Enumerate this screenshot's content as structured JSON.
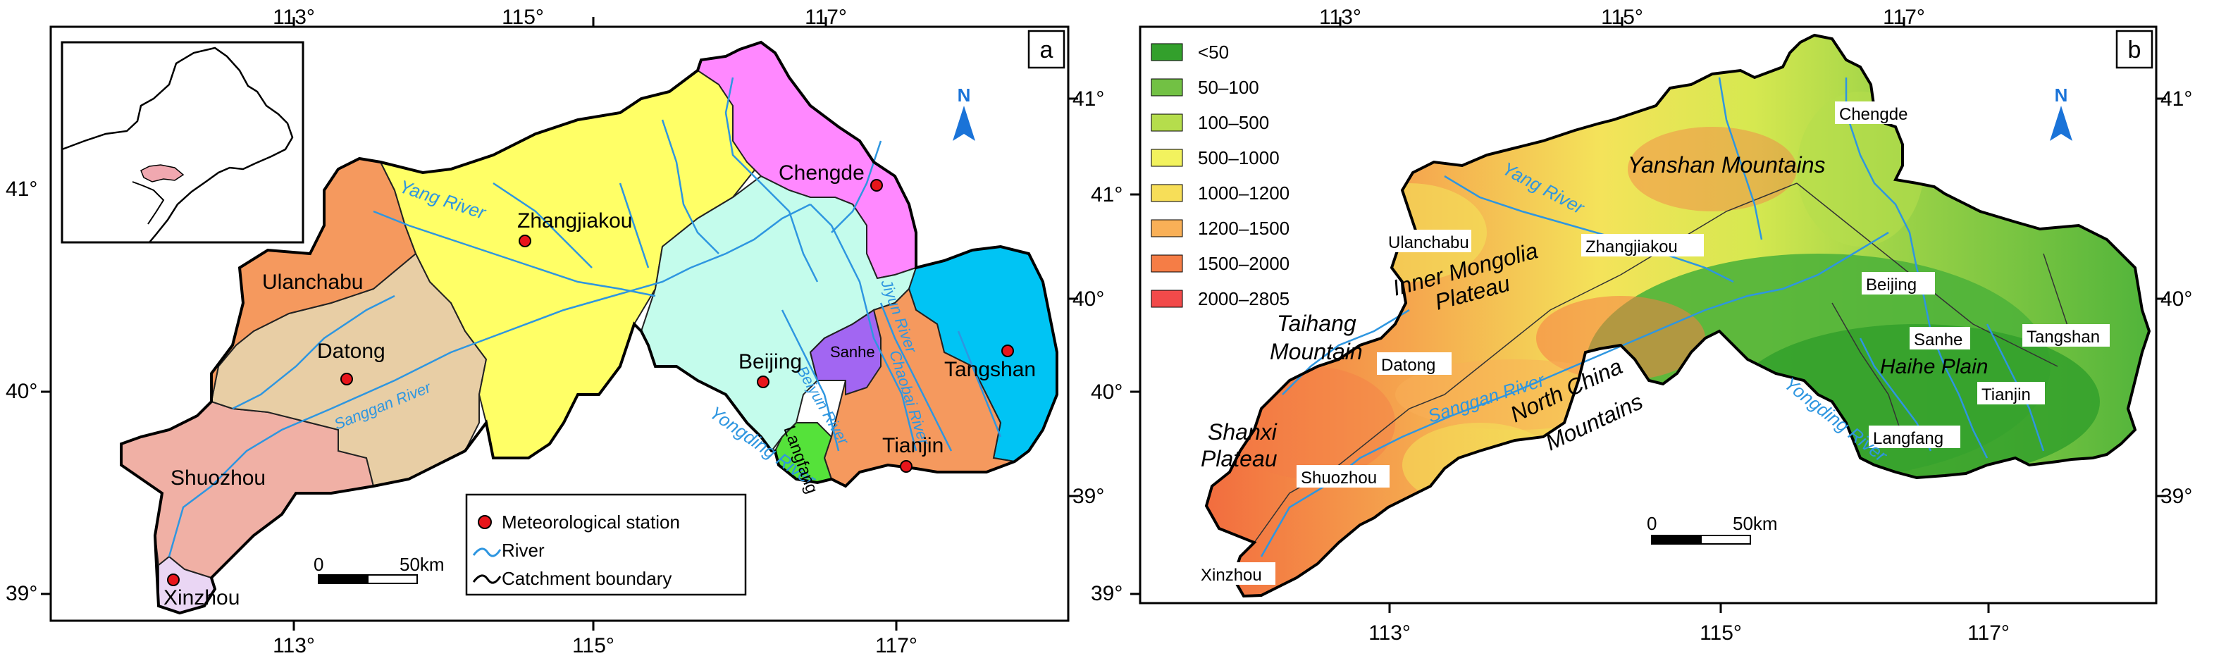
{
  "panel_a": {
    "letter": "a",
    "lon_ticks": [
      "113°",
      "115°",
      "117°"
    ],
    "lat_ticks": [
      "41°",
      "40°",
      "39°"
    ],
    "cities": {
      "chengde": "Chengde",
      "zhangjiakou": "Zhangjiakou",
      "ulanchabu": "Ulanchabu",
      "datong": "Datong",
      "beijing": "Beijing",
      "tangshan": "Tangshan",
      "sanhe": "Sanhe",
      "shuozhou": "Shuozhou",
      "tianjin": "Tianjin",
      "langfang": "Langfang",
      "xinzhou": "Xinzhou"
    },
    "rivers": {
      "yang": "Yang River",
      "sanggan": "Sanggan River",
      "yongding": "Yongding River",
      "beiyun": "Beiyun River",
      "jiyun": "Jiyun River",
      "chaobai": "Chaobai River"
    },
    "north": "N",
    "legend": {
      "station": "Meteorological station",
      "river": "River",
      "boundary": "Catchment boundary"
    },
    "scale": {
      "zero": "0",
      "end": "50km"
    },
    "colors": {
      "yellow": "#ffff66",
      "pink": "#ff88ff",
      "cyan": "#c4fcec",
      "blue": "#00c4f4",
      "orange": "#f5995e",
      "tan": "#e8cea5",
      "salmon": "#f0b0a5",
      "purple": "#a266f2",
      "green": "#55e23a",
      "lavender": "#ead6f4",
      "river": "#2e96e0",
      "station": "#e8151b"
    }
  },
  "panel_b": {
    "letter": "b",
    "lon_ticks": [
      "113°",
      "115°",
      "117°"
    ],
    "lat_ticks": [
      "41°",
      "40°",
      "39°"
    ],
    "legend_classes": [
      {
        "label": "<50",
        "color": "#33a02c"
      },
      {
        "label": "50–100",
        "color": "#72c144"
      },
      {
        "label": "100–500",
        "color": "#b5dd4c"
      },
      {
        "label": "500–1000",
        "color": "#f2f25e"
      },
      {
        "label": "1000–1200",
        "color": "#f7de58"
      },
      {
        "label": "1200–1500",
        "color": "#f9b057"
      },
      {
        "label": "1500–2000",
        "color": "#f57d46"
      },
      {
        "label": "2000–2805",
        "color": "#f24a4a"
      }
    ],
    "regions": {
      "yanshan": "Yanshan Mountains",
      "inner_mongolia_1": "Inner Mongolia",
      "inner_mongolia_2": "Plateau",
      "taihang_1": "Taihang",
      "taihang_2": "Mountain",
      "shanxi_1": "Shanxi",
      "shanxi_2": "Plateau",
      "north_china_1": "North China",
      "north_china_2": "Mountains",
      "haihe": "Haihe Plain"
    },
    "cities": {
      "chengde": "Chengde",
      "ulanchabu": "Ulanchabu",
      "zhangjiakou": "Zhangjiakou",
      "beijing": "Beijing",
      "sanhe": "Sanhe",
      "tangshan": "Tangshan",
      "tianjin": "Tianjin",
      "langfang": "Langfang",
      "datong": "Datong",
      "shuozhou": "Shuozhou",
      "xinzhou": "Xinzhou"
    },
    "rivers": {
      "yang": "Yang River",
      "sanggan": "Sanggan River",
      "yongding": "Yongding River"
    },
    "north": "N",
    "scale": {
      "zero": "0",
      "end": "50km"
    }
  }
}
